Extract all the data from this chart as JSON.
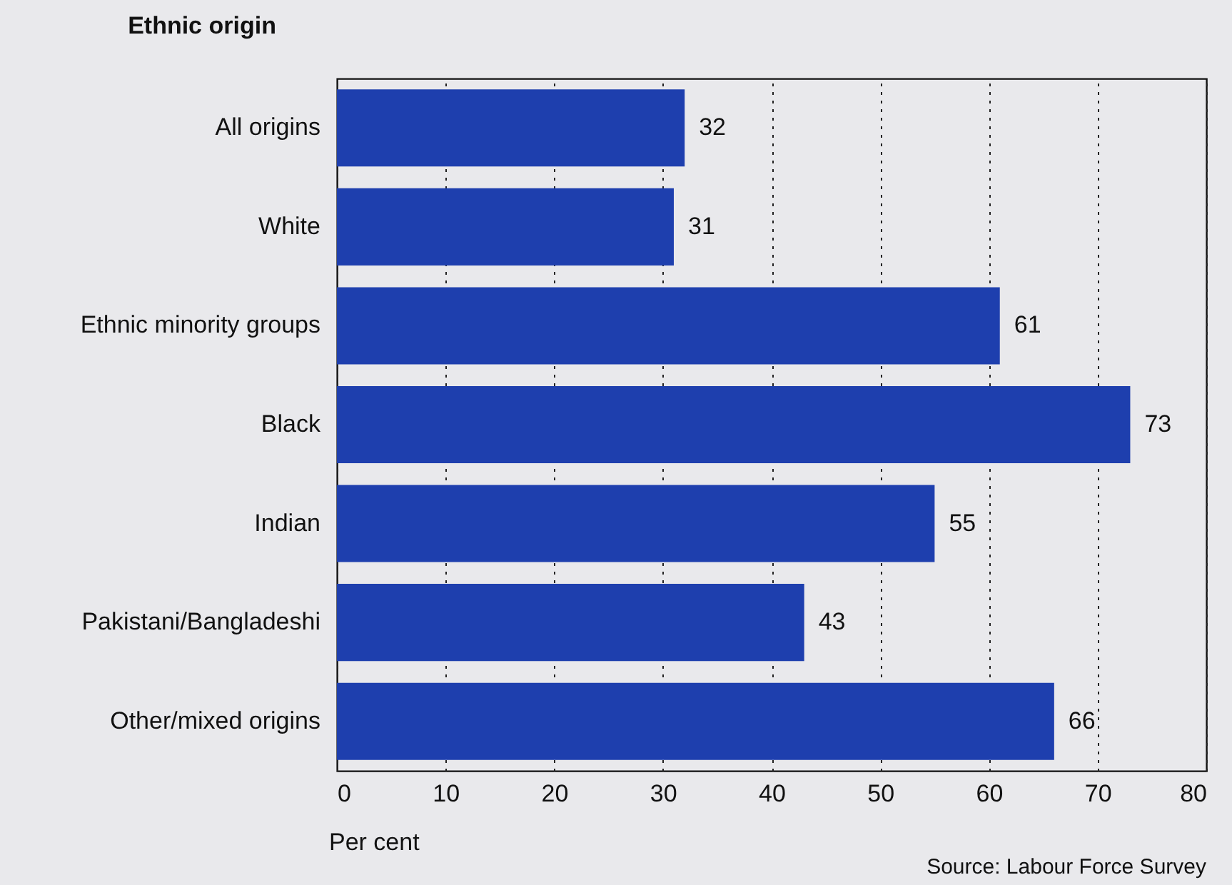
{
  "chart_data": {
    "type": "bar",
    "orientation": "horizontal",
    "ylabel": "Ethnic origin",
    "xlabel": "Per cent",
    "categories": [
      "All origins",
      "White",
      "Ethnic minority groups",
      "Black",
      "Indian",
      "Pakistani/Bangladeshi",
      "Other/mixed origins"
    ],
    "values": [
      32,
      31,
      61,
      73,
      55,
      43,
      66
    ],
    "color": "#1e3fae",
    "xlim": [
      0,
      80
    ],
    "xticks": [
      0,
      10,
      20,
      30,
      40,
      50,
      60,
      70,
      80
    ],
    "grid": "x",
    "data_labels": true,
    "annotations": [
      "Source: Labour Force Survey"
    ]
  }
}
